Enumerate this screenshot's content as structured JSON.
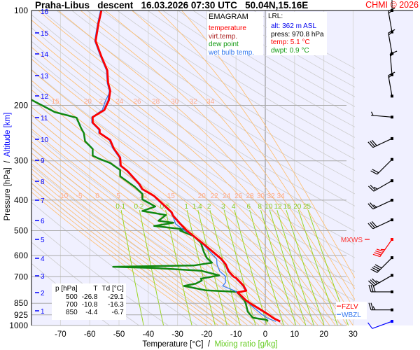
{
  "header": {
    "title": "Praha-Libus   descent   16.03.2026 07:30 UTC   50.04N,15.16E",
    "copyright": "CHMI © 2026"
  },
  "legend": {
    "title": "EMAGRAM",
    "items": [
      {
        "label": "temperature",
        "color": "#ff0000"
      },
      {
        "label": "virt.temp.",
        "color": "#aa2222"
      },
      {
        "label": "dew point",
        "color": "#119911"
      },
      {
        "label": "wet bulb temp.",
        "color": "#3377ee"
      }
    ]
  },
  "lrl": {
    "title": "LRL:",
    "alt": "alt: 362 m ASL",
    "press": "press: 970.8 hPa",
    "temp": "temp: 5.1 °C",
    "dwpt": "dwpt: 0.9 °C"
  },
  "summary_table": {
    "headers": [
      "p [hPa]",
      "T",
      "Td [°C]"
    ],
    "rows": [
      [
        "500",
        "-26.8",
        "-29.1"
      ],
      [
        "700",
        "-10.8",
        "-16.3"
      ],
      [
        "850",
        "-4.4",
        "-6.7"
      ]
    ]
  },
  "markers": {
    "mxws": "MXWS",
    "fzlv": "FZLV",
    "wbzl": "WBZL"
  },
  "axis_labels": {
    "x_temp": "Temperature [°C]",
    "x_sep": "  /  ",
    "x_mix": "Mixing ratio [g/kg]",
    "y_press": "Pressure [hPa]",
    "y_sep": "  /  ",
    "y_alt": "Altitude [km]"
  },
  "chart_data": {
    "type": "line",
    "title": "EMAGRAM",
    "xlabel": "Temperature [°C] / Mixing ratio [g/kg]",
    "ylabel": "Pressure [hPa] / Altitude [km]",
    "xlim": [
      -80,
      30
    ],
    "ylim": [
      1000,
      100
    ],
    "y_scale": "log",
    "x_ticks": [
      -70,
      -60,
      -50,
      -40,
      -30,
      -20,
      -10,
      0,
      10,
      20,
      30
    ],
    "pressure_ticks": [
      100,
      200,
      300,
      400,
      500,
      600,
      700,
      850,
      925,
      1000
    ],
    "altitude_km_ticks": [
      16,
      15,
      14,
      13,
      12,
      11,
      10,
      9,
      8,
      7,
      6,
      5,
      4,
      3,
      2,
      1
    ],
    "moist_adiabat_labels_upper": [
      15,
      20,
      22,
      24,
      26,
      28,
      30,
      32,
      34
    ],
    "moist_adiabat_labels_lower": [
      -10,
      -5,
      0,
      5,
      10,
      15,
      20,
      22,
      24,
      26,
      28,
      30,
      32,
      34
    ],
    "mixing_ratio_labels": [
      0.1,
      0.2,
      0.5,
      1,
      1.4,
      2,
      3,
      4,
      6,
      8,
      10,
      12,
      15,
      20,
      25
    ],
    "temperature": [
      [
        970.8,
        5.1
      ],
      [
        950,
        3
      ],
      [
        922,
        1
      ],
      [
        880,
        -2.5
      ],
      [
        860,
        -4.3
      ],
      [
        831,
        -6.7
      ],
      [
        800,
        -8.5
      ],
      [
        785,
        -9.5
      ],
      [
        775,
        -6.5
      ],
      [
        749,
        -7.4
      ],
      [
        730,
        -8.5
      ],
      [
        706,
        -10
      ],
      [
        700,
        -10.8
      ],
      [
        673,
        -12.5
      ],
      [
        640,
        -13.5
      ],
      [
        615,
        -15
      ],
      [
        556,
        -20.6
      ],
      [
        520,
        -24.5
      ],
      [
        500,
        -26.8
      ],
      [
        476,
        -29
      ],
      [
        448,
        -31.5
      ],
      [
        437,
        -32
      ],
      [
        388,
        -38
      ],
      [
        369,
        -42
      ],
      [
        356,
        -43
      ],
      [
        324,
        -47
      ],
      [
        311,
        -49.4
      ],
      [
        293,
        -49.6
      ],
      [
        274,
        -51.8
      ],
      [
        258,
        -53
      ],
      [
        245,
        -56.6
      ],
      [
        239,
        -56.6
      ],
      [
        227,
        -59
      ],
      [
        218,
        -59
      ],
      [
        207,
        -55
      ],
      [
        193,
        -53.5
      ],
      [
        180,
        -53
      ],
      [
        170,
        -53.7
      ],
      [
        155,
        -54
      ],
      [
        140,
        -56
      ],
      [
        125,
        -58
      ],
      [
        110,
        -57
      ],
      [
        100,
        -56
      ]
    ],
    "dew_point": [
      [
        970.8,
        0.9
      ],
      [
        960,
        0.5
      ],
      [
        945,
        -4.3
      ],
      [
        903,
        -6
      ],
      [
        850,
        -6.7
      ],
      [
        831,
        -7.2
      ],
      [
        782,
        -9.8
      ],
      [
        773,
        -20.4
      ],
      [
        749,
        -27.8
      ],
      [
        736,
        -23.7
      ],
      [
        720,
        -21.7
      ],
      [
        710,
        -22
      ],
      [
        693,
        -15.8
      ],
      [
        670,
        -22
      ],
      [
        657,
        -38
      ],
      [
        651,
        -52
      ],
      [
        645,
        -24.5
      ],
      [
        632,
        -18.2
      ],
      [
        610,
        -20
      ],
      [
        584,
        -21
      ],
      [
        547,
        -22
      ],
      [
        520,
        -24.5
      ],
      [
        500,
        -29.1
      ],
      [
        495,
        -27.8
      ],
      [
        483,
        -38
      ],
      [
        472,
        -31.4
      ],
      [
        465,
        -36.5
      ],
      [
        446,
        -34
      ],
      [
        433,
        -42
      ],
      [
        419,
        -37.6
      ],
      [
        398,
        -42
      ],
      [
        382,
        -42
      ],
      [
        363,
        -44.6
      ],
      [
        336,
        -49.6
      ],
      [
        321,
        -49.6
      ],
      [
        312,
        -51.5
      ],
      [
        305,
        -53
      ],
      [
        296,
        -56.6
      ],
      [
        289,
        -59
      ],
      [
        275,
        -59
      ],
      [
        260,
        -61.6
      ],
      [
        245,
        -62
      ],
      [
        236,
        -63
      ],
      [
        219,
        -64.5
      ],
      [
        210,
        -72
      ],
      [
        203,
        -75
      ],
      [
        192,
        -80
      ]
    ],
    "wind": [
      {
        "p": 117,
        "dir": 350,
        "kt": 15
      },
      {
        "p": 137,
        "dir": 350,
        "kt": 15
      },
      {
        "p": 160,
        "dir": 355,
        "kt": 15
      },
      {
        "p": 187,
        "dir": 350,
        "kt": 15
      },
      {
        "p": 218,
        "dir": 275,
        "kt": 5
      },
      {
        "p": 255,
        "dir": 245,
        "kt": 30
      },
      {
        "p": 297,
        "dir": 225,
        "kt": 20
      },
      {
        "p": 347,
        "dir": 240,
        "kt": 25
      },
      {
        "p": 400,
        "dir": 245,
        "kt": 25
      },
      {
        "p": 462,
        "dir": 245,
        "kt": 30
      },
      {
        "p": 533,
        "dir": 215,
        "kt": 45,
        "max": true
      },
      {
        "p": 609,
        "dir": 225,
        "kt": 40
      },
      {
        "p": 693,
        "dir": 240,
        "kt": 35
      },
      {
        "p": 782,
        "dir": 270,
        "kt": 30
      },
      {
        "p": 892,
        "dir": 270,
        "kt": 25
      },
      {
        "p": 970,
        "dir": 250,
        "kt": 10,
        "surface": true
      }
    ],
    "mxws_pressure": 533,
    "fzlv_pressure": 890,
    "wbzl_pressure": 915,
    "colors": {
      "temperature": "#ff0000",
      "dew_point": "#118811",
      "wet_bulb": "#3377ee",
      "dry_adiabat": "#cccccc",
      "moist_adiabat": "#ffbb66",
      "mixing_ratio": "#99d622",
      "moist_label": "#ffaa88",
      "mix_label": "#88cc22",
      "altitude": "#0000ff"
    }
  }
}
